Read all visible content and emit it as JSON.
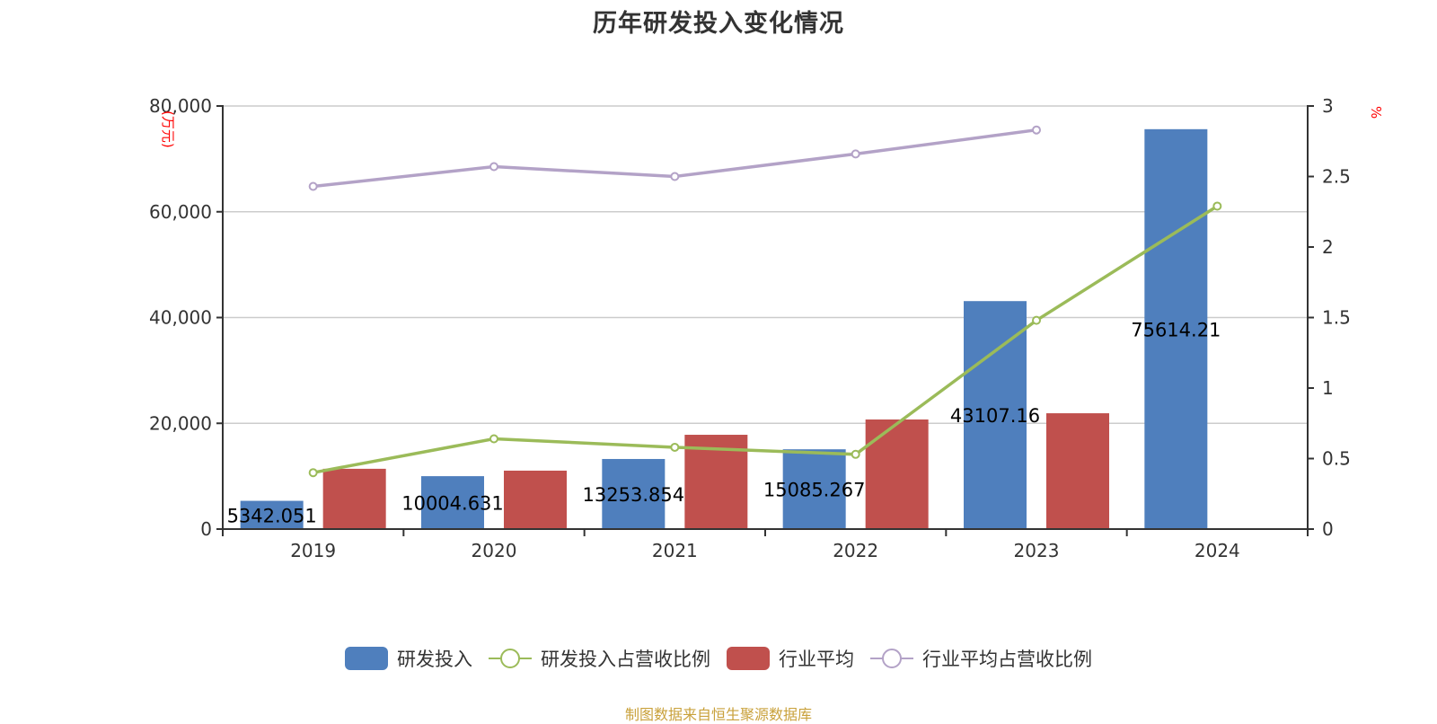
{
  "title": "历年研发投入变化情况",
  "footer": "制图数据来自恒生聚源数据库",
  "left_axis": {
    "unit": "万元",
    "ticks": [
      "0",
      "20,000",
      "40,000",
      "60,000",
      "80,000"
    ]
  },
  "right_axis": {
    "unit": "%",
    "ticks": [
      "0",
      "0.5",
      "1",
      "1.5",
      "2",
      "2.5",
      "3"
    ]
  },
  "legend": [
    {
      "label": "研发投入",
      "type": "bar",
      "color": "#4f7fbd"
    },
    {
      "label": "研发投入占营收比例",
      "type": "line",
      "color": "#9bbb59"
    },
    {
      "label": "行业平均",
      "type": "bar",
      "color": "#c0504d"
    },
    {
      "label": "行业平均占营收比例",
      "type": "line",
      "color": "#b3a2c7"
    }
  ],
  "colors": {
    "rd": "#4f7fbd",
    "industry": "#c0504d",
    "rd_ratio": "#9bbb59",
    "industry_ratio": "#b3a2c7",
    "grid": "#cccccc",
    "axis": "#333333"
  },
  "chart_data": {
    "type": "bar",
    "title": "历年研发投入变化情况",
    "categories": [
      "2019",
      "2020",
      "2021",
      "2022",
      "2023",
      "2024"
    ],
    "series": [
      {
        "name": "研发投入",
        "type": "bar",
        "axis": "left",
        "values": [
          5342.051,
          10004.631,
          13253.854,
          15085.267,
          43107.16,
          75614.21
        ],
        "labels": [
          "5342.051",
          "10004.631",
          "13253.854",
          "15085.267",
          "43107.16",
          "75614.21"
        ]
      },
      {
        "name": "研发投入占营收比例",
        "type": "line",
        "axis": "right",
        "values": [
          0.4,
          0.64,
          0.58,
          0.53,
          1.48,
          2.29
        ]
      },
      {
        "name": "行业平均",
        "type": "bar",
        "axis": "left",
        "values": [
          11400,
          11050,
          17830,
          20720,
          21900,
          null
        ]
      },
      {
        "name": "行业平均占营收比例",
        "type": "line",
        "axis": "right",
        "values": [
          2.43,
          2.57,
          2.5,
          2.66,
          2.83,
          null
        ]
      }
    ],
    "xlabel": "",
    "ylabel": "万元",
    "ylabel_right": "%",
    "ylim": [
      0,
      80000
    ],
    "ylim_right": [
      0,
      3
    ],
    "grid": true,
    "legend_position": "bottom"
  }
}
